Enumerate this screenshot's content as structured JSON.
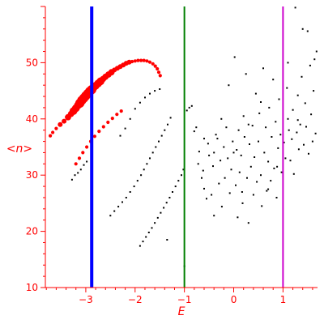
{
  "chart_data": {
    "type": "scatter",
    "xlabel": "E",
    "ylabel": "<n>",
    "xlim": [
      -3.82,
      1.7
    ],
    "ylim": [
      10,
      60
    ],
    "grid": false,
    "x_ticks": [
      -3,
      -2,
      -1,
      0,
      1
    ],
    "y_ticks": [
      10,
      20,
      30,
      40,
      50
    ],
    "colors": {
      "axis": "#ff0000",
      "highlight": "#ff0000",
      "points": "#000000",
      "line_a": "#0000ff",
      "line_b": "#008000",
      "line_c": "#cc00cc"
    },
    "vertical_lines": [
      {
        "x": -2.88,
        "color": "#0000ff",
        "width": 4
      },
      {
        "x": -1.0,
        "color": "#008000",
        "width": 2
      },
      {
        "x": 1.0,
        "color": "#cc00cc",
        "width": 2
      }
    ],
    "highlight_series": {
      "color": "#ff0000",
      "points": [
        {
          "x": -3.72,
          "y": 37.0,
          "s": 1
        },
        {
          "x": -3.67,
          "y": 37.6,
          "s": 1
        },
        {
          "x": -3.6,
          "y": 38.3,
          "s": 1
        },
        {
          "x": -3.52,
          "y": 39.0,
          "s": 2
        },
        {
          "x": -3.44,
          "y": 39.6,
          "s": 2
        },
        {
          "x": -3.36,
          "y": 40.3,
          "s": 3
        },
        {
          "x": -3.3,
          "y": 40.9,
          "s": 3
        },
        {
          "x": -3.25,
          "y": 41.4,
          "s": 4
        },
        {
          "x": -3.2,
          "y": 41.9,
          "s": 4
        },
        {
          "x": -3.16,
          "y": 42.4,
          "s": 4
        },
        {
          "x": -3.12,
          "y": 42.8,
          "s": 5
        },
        {
          "x": -3.08,
          "y": 43.3,
          "s": 5
        },
        {
          "x": -3.04,
          "y": 43.7,
          "s": 5
        },
        {
          "x": -3.0,
          "y": 44.1,
          "s": 5
        },
        {
          "x": -2.96,
          "y": 44.5,
          "s": 5
        },
        {
          "x": -2.92,
          "y": 44.9,
          "s": 5
        },
        {
          "x": -2.88,
          "y": 45.2,
          "s": 5
        },
        {
          "x": -2.84,
          "y": 45.6,
          "s": 4
        },
        {
          "x": -2.8,
          "y": 45.9,
          "s": 4
        },
        {
          "x": -2.75,
          "y": 46.3,
          "s": 4
        },
        {
          "x": -2.7,
          "y": 46.7,
          "s": 4
        },
        {
          "x": -2.65,
          "y": 47.1,
          "s": 3
        },
        {
          "x": -2.6,
          "y": 47.5,
          "s": 3
        },
        {
          "x": -2.54,
          "y": 47.9,
          "s": 3
        },
        {
          "x": -2.48,
          "y": 48.3,
          "s": 3
        },
        {
          "x": -2.42,
          "y": 48.7,
          "s": 2
        },
        {
          "x": -2.36,
          "y": 49.0,
          "s": 2
        },
        {
          "x": -2.3,
          "y": 49.3,
          "s": 2
        },
        {
          "x": -2.24,
          "y": 49.6,
          "s": 2
        },
        {
          "x": -2.18,
          "y": 49.9,
          "s": 2
        },
        {
          "x": -2.12,
          "y": 50.1,
          "s": 2
        },
        {
          "x": -2.06,
          "y": 50.2,
          "s": 1
        },
        {
          "x": -2.0,
          "y": 50.3,
          "s": 1
        },
        {
          "x": -1.94,
          "y": 50.4,
          "s": 1
        },
        {
          "x": -1.88,
          "y": 50.4,
          "s": 1
        },
        {
          "x": -1.82,
          "y": 50.4,
          "s": 1
        },
        {
          "x": -1.76,
          "y": 50.3,
          "s": 1
        },
        {
          "x": -1.7,
          "y": 50.1,
          "s": 1
        },
        {
          "x": -1.64,
          "y": 49.8,
          "s": 1
        },
        {
          "x": -1.59,
          "y": 49.4,
          "s": 1
        },
        {
          "x": -1.55,
          "y": 48.9,
          "s": 1
        },
        {
          "x": -1.52,
          "y": 48.3,
          "s": 1
        },
        {
          "x": -1.49,
          "y": 47.7,
          "s": 1
        },
        {
          "x": -3.2,
          "y": 32.0,
          "s": 1
        },
        {
          "x": -3.13,
          "y": 33.0,
          "s": 1
        },
        {
          "x": -3.06,
          "y": 34.0,
          "s": 1
        },
        {
          "x": -2.98,
          "y": 35.0,
          "s": 1
        },
        {
          "x": -2.9,
          "y": 36.0,
          "s": 1
        },
        {
          "x": -2.82,
          "y": 36.9,
          "s": 1
        },
        {
          "x": -2.73,
          "y": 37.8,
          "s": 1
        },
        {
          "x": -2.64,
          "y": 38.6,
          "s": 1
        },
        {
          "x": -2.55,
          "y": 39.4,
          "s": 1
        },
        {
          "x": -2.46,
          "y": 40.1,
          "s": 1
        },
        {
          "x": -2.37,
          "y": 40.8,
          "s": 1
        },
        {
          "x": -2.28,
          "y": 41.4,
          "s": 1
        }
      ]
    },
    "background_points": [
      [
        -3.28,
        29.2
      ],
      [
        -3.22,
        30.0
      ],
      [
        -3.16,
        30.4
      ],
      [
        -3.1,
        31.0
      ],
      [
        -3.04,
        31.8
      ],
      [
        -2.98,
        32.4
      ],
      [
        -2.5,
        22.8
      ],
      [
        -2.42,
        23.6
      ],
      [
        -2.34,
        24.4
      ],
      [
        -2.26,
        25.2
      ],
      [
        -2.18,
        26.0
      ],
      [
        -2.1,
        27.0
      ],
      [
        -2.02,
        28.0
      ],
      [
        -1.95,
        29.0
      ],
      [
        -1.88,
        30.0
      ],
      [
        -1.82,
        31.0
      ],
      [
        -1.76,
        32.0
      ],
      [
        -1.7,
        33.0
      ],
      [
        -1.64,
        34.0
      ],
      [
        -1.58,
        35.0
      ],
      [
        -1.52,
        36.0
      ],
      [
        -1.46,
        37.0
      ],
      [
        -1.4,
        38.0
      ],
      [
        -1.34,
        39.0
      ],
      [
        -1.28,
        40.2
      ],
      [
        -1.9,
        17.4
      ],
      [
        -1.84,
        18.2
      ],
      [
        -1.78,
        19.0
      ],
      [
        -1.72,
        19.8
      ],
      [
        -1.66,
        20.6
      ],
      [
        -1.6,
        21.5
      ],
      [
        -1.54,
        22.4
      ],
      [
        -1.48,
        23.3
      ],
      [
        -1.42,
        24.2
      ],
      [
        -1.36,
        25.1
      ],
      [
        -1.3,
        26.0
      ],
      [
        -1.24,
        27.0
      ],
      [
        -1.18,
        28.0
      ],
      [
        -1.12,
        29.0
      ],
      [
        -1.06,
        30.0
      ],
      [
        -1.02,
        31.0
      ],
      [
        -2.3,
        37.0
      ],
      [
        -2.2,
        38.3
      ],
      [
        -2.1,
        40.0
      ],
      [
        -2.0,
        41.8
      ],
      [
        -1.9,
        42.9
      ],
      [
        -1.8,
        43.8
      ],
      [
        -1.7,
        44.5
      ],
      [
        -1.6,
        45.0
      ],
      [
        -1.5,
        45.3
      ],
      [
        -1.35,
        18.5
      ],
      [
        -1.0,
        13.8
      ],
      [
        -0.95,
        41.5
      ],
      [
        -0.9,
        42.0
      ],
      [
        -0.85,
        42.3
      ],
      [
        -0.8,
        37.8
      ],
      [
        -0.76,
        38.5
      ],
      [
        -0.72,
        32.0
      ],
      [
        -0.7,
        34.2
      ],
      [
        -0.65,
        29.5
      ],
      [
        -0.62,
        30.8
      ],
      [
        -0.6,
        27.6
      ],
      [
        -0.55,
        25.8
      ],
      [
        -0.52,
        35.6
      ],
      [
        -0.5,
        33.5
      ],
      [
        -0.45,
        26.5
      ],
      [
        -0.42,
        31.6
      ],
      [
        -0.4,
        22.8
      ],
      [
        -0.36,
        37.2
      ],
      [
        -0.33,
        36.5
      ],
      [
        -0.3,
        28.5
      ],
      [
        -0.27,
        32.6
      ],
      [
        -0.24,
        24.4
      ],
      [
        -0.2,
        35.0
      ],
      [
        -0.18,
        29.5
      ],
      [
        -0.15,
        38.5
      ],
      [
        -0.12,
        33.0
      ],
      [
        -0.1,
        46.0
      ],
      [
        -0.08,
        26.8
      ],
      [
        -0.05,
        31.0
      ],
      [
        -0.02,
        36.0
      ],
      [
        0.02,
        51.0
      ],
      [
        0.04,
        28.2
      ],
      [
        0.06,
        34.5
      ],
      [
        0.08,
        22.5
      ],
      [
        0.1,
        38.0
      ],
      [
        0.12,
        30.5
      ],
      [
        0.15,
        33.5
      ],
      [
        0.17,
        27.0
      ],
      [
        0.2,
        40.5
      ],
      [
        0.22,
        36.8
      ],
      [
        0.25,
        48.0
      ],
      [
        0.27,
        29.5
      ],
      [
        0.3,
        21.5
      ],
      [
        0.32,
        35.5
      ],
      [
        0.35,
        31.5
      ],
      [
        0.38,
        38.8
      ],
      [
        0.4,
        26.5
      ],
      [
        0.42,
        33.2
      ],
      [
        0.45,
        44.5
      ],
      [
        0.47,
        28.8
      ],
      [
        0.5,
        36.0
      ],
      [
        0.52,
        41.0
      ],
      [
        0.55,
        30.0
      ],
      [
        0.57,
        24.5
      ],
      [
        0.6,
        49.0
      ],
      [
        0.62,
        34.0
      ],
      [
        0.65,
        38.5
      ],
      [
        0.67,
        27.2
      ],
      [
        0.7,
        32.4
      ],
      [
        0.72,
        42.0
      ],
      [
        0.75,
        29.0
      ],
      [
        0.77,
        36.8
      ],
      [
        0.8,
        47.0
      ],
      [
        0.82,
        31.2
      ],
      [
        0.85,
        39.5
      ],
      [
        0.87,
        26.0
      ],
      [
        0.9,
        34.8
      ],
      [
        0.92,
        43.5
      ],
      [
        0.95,
        37.2
      ],
      [
        0.97,
        30.5
      ],
      [
        1.02,
        35.8
      ],
      [
        1.05,
        33.0
      ],
      [
        1.08,
        45.5
      ],
      [
        1.1,
        40.0
      ],
      [
        1.12,
        38.0
      ],
      [
        1.15,
        32.6
      ],
      [
        1.18,
        36.4
      ],
      [
        1.2,
        41.6
      ],
      [
        1.22,
        30.2
      ],
      [
        1.25,
        59.8
      ],
      [
        1.28,
        37.6
      ],
      [
        1.3,
        44.2
      ],
      [
        1.32,
        34.6
      ],
      [
        1.35,
        39.0
      ],
      [
        1.38,
        47.5
      ],
      [
        1.4,
        56.0
      ],
      [
        1.42,
        35.4
      ],
      [
        1.45,
        42.8
      ],
      [
        1.47,
        38.6
      ],
      [
        1.5,
        55.6
      ],
      [
        1.52,
        33.8
      ],
      [
        1.55,
        49.5
      ],
      [
        1.57,
        40.8
      ],
      [
        1.6,
        36.0
      ],
      [
        1.62,
        45.0
      ],
      [
        1.64,
        50.6
      ],
      [
        1.66,
        37.4
      ],
      [
        1.68,
        52.0
      ],
      [
        1.3,
        39.8
      ],
      [
        0.3,
        39.0
      ],
      [
        -0.25,
        40.0
      ],
      [
        0.55,
        43.0
      ],
      [
        1.1,
        50.0
      ],
      [
        -0.6,
        36.5
      ],
      [
        0.0,
        34.0
      ],
      [
        0.18,
        25.0
      ],
      [
        0.7,
        27.5
      ],
      [
        -0.4,
        34.0
      ],
      [
        0.88,
        31.5
      ]
    ]
  }
}
